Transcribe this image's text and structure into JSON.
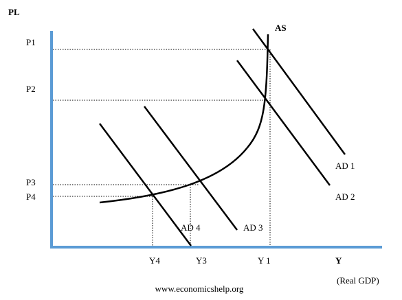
{
  "axes": {
    "y_label": "PL",
    "x_label": "Y",
    "x_sublabel": "(Real GDP)"
  },
  "price_levels": [
    "P1",
    "P2",
    "P3",
    "P4"
  ],
  "outputs": [
    "Y4",
    "Y3",
    "Y 1"
  ],
  "curves": {
    "supply": "AS",
    "demand": [
      "AD 1",
      "AD 2",
      "AD 3",
      "AD 4"
    ]
  },
  "footer": "www.economicshelp.org"
}
